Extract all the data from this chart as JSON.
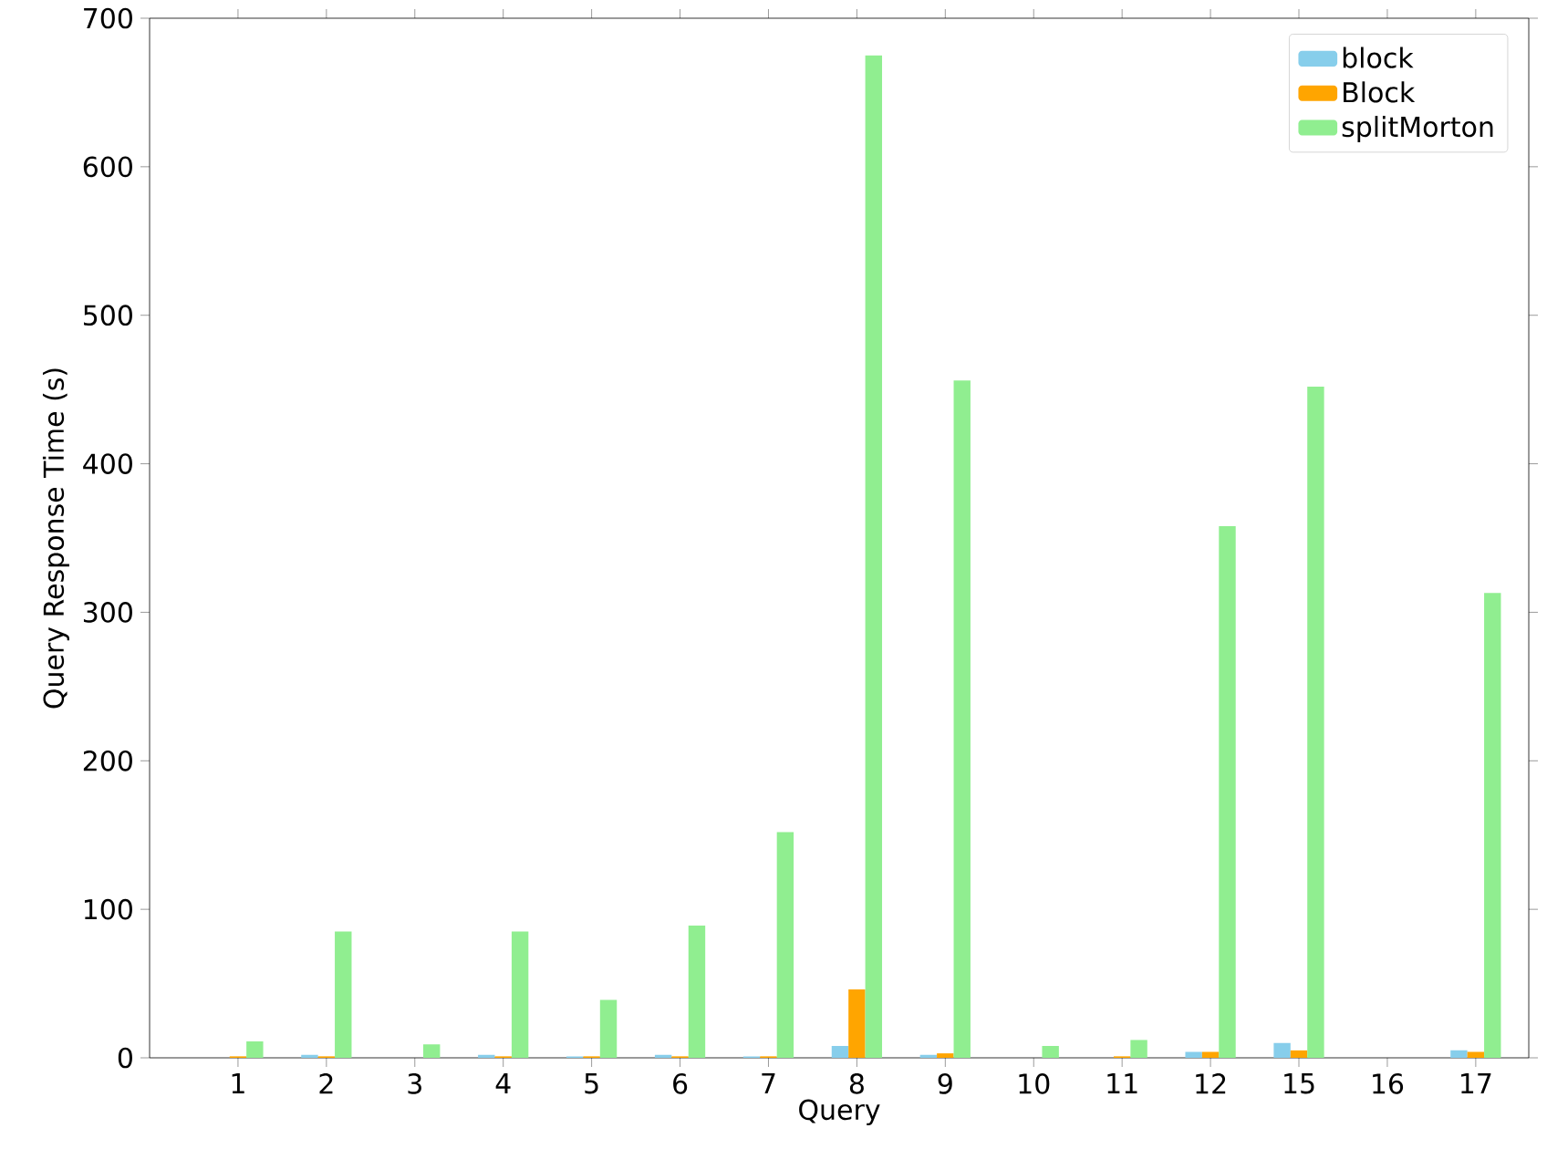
{
  "chart_data": {
    "type": "bar",
    "xlabel": "Query",
    "ylabel": "Query Response Time (s)",
    "categories": [
      "1",
      "2",
      "3",
      "4",
      "5",
      "6",
      "7",
      "8",
      "9",
      "10",
      "11",
      "12",
      "15",
      "16",
      "17"
    ],
    "series": [
      {
        "name": "block",
        "color": "#87ceeb",
        "values": [
          0,
          2,
          0,
          2,
          1,
          2,
          1,
          8,
          2,
          0,
          0,
          4,
          10,
          0,
          5
        ]
      },
      {
        "name": "Block",
        "color": "#ffa500",
        "values": [
          1,
          1,
          0,
          1,
          1,
          1,
          1,
          46,
          3,
          0,
          1,
          4,
          5,
          0,
          4
        ]
      },
      {
        "name": "splitMorton",
        "color": "#90ee90",
        "values": [
          11,
          85,
          9,
          85,
          39,
          89,
          152,
          675,
          456,
          8,
          12,
          358,
          452,
          0,
          313
        ]
      }
    ],
    "ylim": [
      0,
      700
    ],
    "yticks": [
      0,
      100,
      200,
      300,
      400,
      500,
      600,
      700
    ],
    "legend": "top right"
  }
}
